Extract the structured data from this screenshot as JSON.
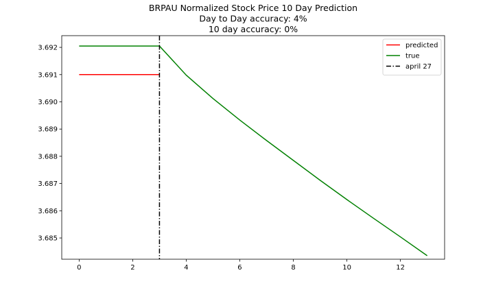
{
  "chart_data": {
    "type": "line",
    "title_lines": [
      "BRPAU Normalized Stock Price 10 Day Prediction",
      "Day to Day accuracy: 4%",
      "10 day accuracy: 0%"
    ],
    "xlabel": "",
    "ylabel": "",
    "xlim": [
      -0.65,
      13.65
    ],
    "ylim": [
      3.68422,
      3.69243
    ],
    "xticks": [
      0,
      2,
      4,
      6,
      8,
      10,
      12
    ],
    "xtick_labels": [
      "0",
      "2",
      "4",
      "6",
      "8",
      "10",
      "12"
    ],
    "yticks": [
      3.685,
      3.686,
      3.687,
      3.688,
      3.689,
      3.69,
      3.691,
      3.692
    ],
    "ytick_labels": [
      "3.685",
      "3.686",
      "3.687",
      "3.688",
      "3.689",
      "3.690",
      "3.691",
      "3.692"
    ],
    "grid": false,
    "legend_position": "top-right",
    "series": [
      {
        "name": "predicted",
        "color": "#ff0000",
        "style": "solid",
        "x": [
          0,
          1,
          2,
          3
        ],
        "y": [
          3.691,
          3.691,
          3.691,
          3.691
        ]
      },
      {
        "name": "true",
        "color": "#008000",
        "style": "solid",
        "x": [
          0,
          1,
          2,
          3,
          4,
          5,
          6,
          7,
          8,
          9,
          10,
          11,
          12,
          13
        ],
        "y": [
          3.69205,
          3.69205,
          3.69205,
          3.69205,
          3.69098,
          3.69012,
          3.68933,
          3.68858,
          3.68785,
          3.68712,
          3.68641,
          3.68572,
          3.68504,
          3.68435
        ]
      }
    ],
    "vlines": [
      {
        "name": "april 27",
        "x": 3,
        "color": "#000000",
        "style": "dashdot"
      }
    ]
  }
}
